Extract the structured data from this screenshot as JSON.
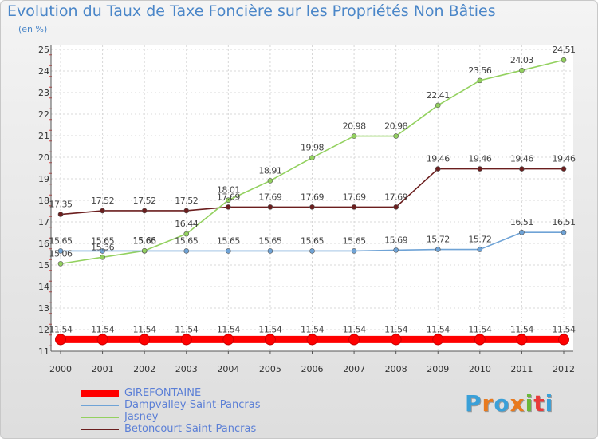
{
  "title": "Evolution du Taux de Taxe Foncière sur les Propriétés Non Bâties",
  "subtitle": "(en %)",
  "logo": {
    "text": "Proxiti",
    "colors": [
      "#3aa0d8",
      "#e87a1e",
      "#3aa0d8",
      "#e87a1e",
      "#6ab83a",
      "#e83a3a",
      "#3aa0d8"
    ]
  },
  "chart_data": {
    "type": "line",
    "title": "Evolution du Taux de Taxe Foncière sur les Propriétés Non Bâties",
    "ylabel": "(en %)",
    "xlabel": "",
    "categories": [
      "2000",
      "2001",
      "2002",
      "2003",
      "2004",
      "2005",
      "2006",
      "2007",
      "2008",
      "2009",
      "2010",
      "2011",
      "2012"
    ],
    "ylim": [
      11,
      25
    ],
    "yticks": [
      "11",
      "12",
      "13",
      "14",
      "15",
      "16",
      "17",
      "18",
      "19",
      "20",
      "21",
      "22",
      "23",
      "24",
      "25"
    ],
    "grid": true,
    "legend_position": "bottom-left",
    "series": [
      {
        "name": "GIREFONTAINE",
        "color": "#ff0000",
        "values": [
          11.54,
          11.54,
          11.54,
          11.54,
          11.54,
          11.54,
          11.54,
          11.54,
          11.54,
          11.54,
          11.54,
          11.54,
          11.54
        ],
        "labels": [
          "11.54",
          "11.54",
          "11.54",
          "11.54",
          "11.54",
          "11.54",
          "11.54",
          "11.54",
          "11.54",
          "11.54",
          "11.54",
          "11.54",
          "11.54"
        ]
      },
      {
        "name": "Dampvalley-Saint-Pancras",
        "color": "#6fa3d6",
        "values": [
          15.65,
          15.65,
          15.65,
          15.65,
          15.65,
          15.65,
          15.65,
          15.65,
          15.69,
          15.72,
          15.72,
          16.51,
          16.51
        ],
        "labels": [
          "15.65",
          "15.65",
          "15.65",
          "15.65",
          "15.65",
          "15.65",
          "15.65",
          "15.65",
          "15.69",
          "15.72",
          "15.72",
          "16.51",
          "16.51"
        ]
      },
      {
        "name": "Jasney",
        "color": "#93d15f",
        "values": [
          15.06,
          15.36,
          15.66,
          16.44,
          18.01,
          18.91,
          19.98,
          20.98,
          20.98,
          22.41,
          23.56,
          24.03,
          24.51
        ],
        "labels": [
          "15.06",
          "15.36",
          "15.66",
          "16.44",
          "18.01",
          "18.91",
          "19.98",
          "20.98",
          "20.98",
          "22.41",
          "23.56",
          "24.03",
          "24.51"
        ]
      },
      {
        "name": "Betoncourt-Saint-Pancras",
        "color": "#6b1e1e",
        "values": [
          17.35,
          17.52,
          17.52,
          17.52,
          17.69,
          17.69,
          17.69,
          17.69,
          17.69,
          19.46,
          19.46,
          19.46,
          19.46
        ],
        "labels": [
          "17.35",
          "17.52",
          "17.52",
          "17.52",
          "17.69",
          "17.69",
          "17.69",
          "17.69",
          "17.69",
          "19.46",
          "19.46",
          "19.46",
          "19.46"
        ]
      }
    ]
  }
}
